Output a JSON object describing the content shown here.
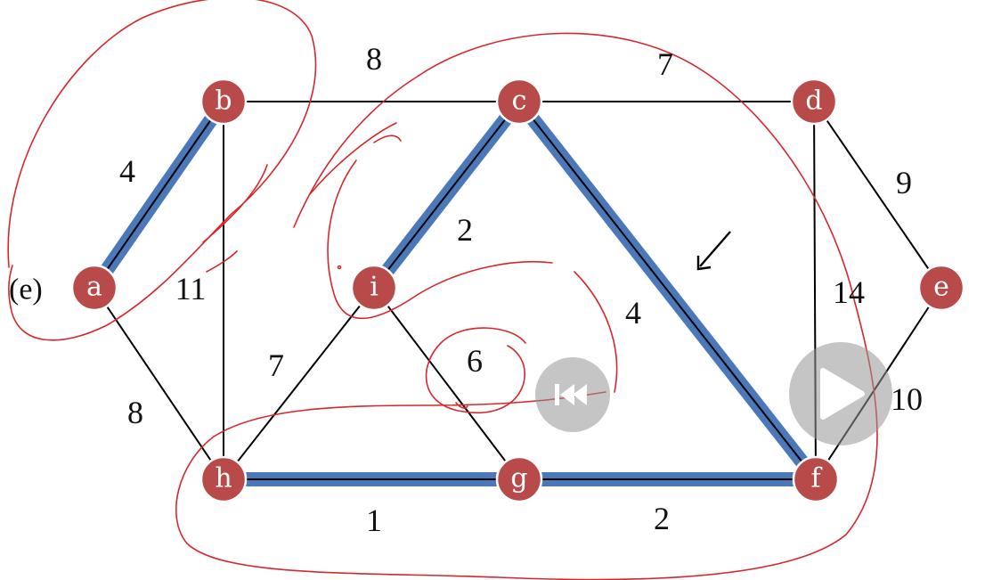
{
  "graph": {
    "nodes": [
      {
        "id": "a",
        "label": "a"
      },
      {
        "id": "b",
        "label": "b"
      },
      {
        "id": "c",
        "label": "c"
      },
      {
        "id": "d",
        "label": "d"
      },
      {
        "id": "e",
        "label": "e"
      },
      {
        "id": "f",
        "label": "f"
      },
      {
        "id": "g",
        "label": "g"
      },
      {
        "id": "h",
        "label": "h"
      },
      {
        "id": "i",
        "label": "i"
      }
    ],
    "edges": [
      {
        "from": "a",
        "to": "b",
        "weight": "4",
        "highlighted": true
      },
      {
        "from": "b",
        "to": "c",
        "weight": "8",
        "highlighted": false
      },
      {
        "from": "c",
        "to": "d",
        "weight": "7",
        "highlighted": false
      },
      {
        "from": "d",
        "to": "e",
        "weight": "9",
        "highlighted": false
      },
      {
        "from": "b",
        "to": "h",
        "weight": "11",
        "highlighted": false
      },
      {
        "from": "c",
        "to": "i",
        "weight": "2",
        "highlighted": true
      },
      {
        "from": "c",
        "to": "f",
        "weight": "4",
        "highlighted": true
      },
      {
        "from": "d",
        "to": "f",
        "weight": "14",
        "highlighted": false
      },
      {
        "from": "e",
        "to": "f",
        "weight": "10",
        "highlighted": false
      },
      {
        "from": "a",
        "to": "h",
        "weight": "8",
        "highlighted": false
      },
      {
        "from": "h",
        "to": "i",
        "weight": "7",
        "highlighted": false
      },
      {
        "from": "i",
        "to": "g",
        "weight": "6",
        "highlighted": false
      },
      {
        "from": "h",
        "to": "g",
        "weight": "1",
        "highlighted": true
      },
      {
        "from": "g",
        "to": "f",
        "weight": "2",
        "highlighted": true
      }
    ],
    "side_label": "(e)"
  },
  "colors": {
    "node_fill": "#b84a4a",
    "highlight": "#4a78b8",
    "ink": "#d8272b",
    "control": "#969696"
  },
  "controls": {
    "rewind_icon": "rewind-icon",
    "play_icon": "play-icon"
  }
}
